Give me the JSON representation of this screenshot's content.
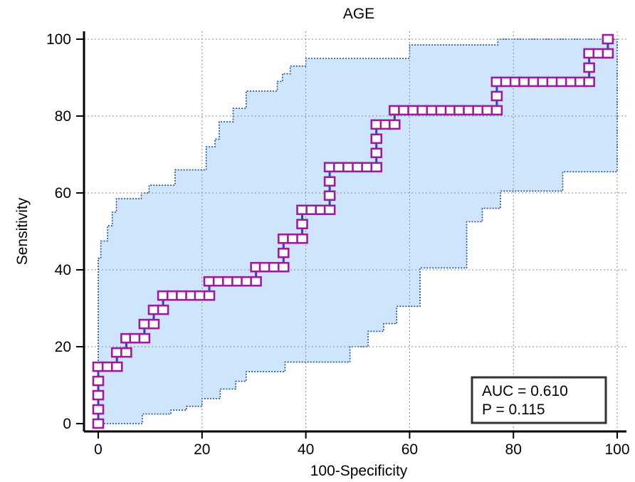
{
  "chart_data": {
    "type": "line",
    "title": "AGE",
    "xlabel": "100-Specificity",
    "ylabel": "Sensitivity",
    "xlim": [
      0,
      100
    ],
    "ylim": [
      0,
      100
    ],
    "xticks": [
      0,
      20,
      40,
      60,
      80,
      100
    ],
    "yticks": [
      0,
      20,
      40,
      60,
      80,
      100
    ],
    "grid": true,
    "annotation": [
      "AUC = 0.610",
      "P = 0.115"
    ],
    "annotation_position": "bottom-right",
    "colors": {
      "curve": "#3b3fb0",
      "markers": "#9c1d9c",
      "ci_fill": "#cfe5fb",
      "ci_border": "#1f4e9c",
      "grid": "#8a8a8a"
    },
    "series": [
      {
        "points": [
          [
            0,
            0
          ],
          [
            0,
            3.7
          ],
          [
            0,
            7.4
          ],
          [
            0,
            11.1
          ],
          [
            0,
            14.8
          ],
          [
            1.8,
            14.8
          ],
          [
            3.6,
            14.8
          ],
          [
            3.6,
            18.5
          ],
          [
            5.4,
            18.5
          ],
          [
            5.4,
            22.2
          ],
          [
            7.1,
            22.2
          ],
          [
            8.9,
            22.2
          ],
          [
            8.9,
            25.9
          ],
          [
            10.7,
            25.9
          ],
          [
            10.7,
            29.6
          ],
          [
            12.5,
            29.6
          ],
          [
            12.5,
            33.3
          ],
          [
            14.3,
            33.3
          ],
          [
            16.1,
            33.3
          ],
          [
            17.9,
            33.3
          ],
          [
            19.6,
            33.3
          ],
          [
            21.4,
            33.3
          ],
          [
            21.4,
            37
          ],
          [
            23.2,
            37
          ],
          [
            25,
            37
          ],
          [
            26.8,
            37
          ],
          [
            28.6,
            37
          ],
          [
            30.4,
            37
          ],
          [
            30.4,
            40.7
          ],
          [
            32.1,
            40.7
          ],
          [
            33.9,
            40.7
          ],
          [
            35.7,
            40.7
          ],
          [
            35.7,
            44.4
          ],
          [
            35.7,
            48.1
          ],
          [
            37.5,
            48.1
          ],
          [
            39.3,
            48.1
          ],
          [
            39.3,
            51.9
          ],
          [
            39.3,
            55.6
          ],
          [
            41.1,
            55.6
          ],
          [
            42.9,
            55.6
          ],
          [
            44.6,
            55.6
          ],
          [
            44.6,
            59.3
          ],
          [
            44.6,
            63
          ],
          [
            44.6,
            66.7
          ],
          [
            46.4,
            66.7
          ],
          [
            48.2,
            66.7
          ],
          [
            50,
            66.7
          ],
          [
            51.8,
            66.7
          ],
          [
            53.6,
            66.7
          ],
          [
            53.6,
            70.4
          ],
          [
            53.6,
            74.1
          ],
          [
            53.6,
            77.8
          ],
          [
            55.4,
            77.8
          ],
          [
            57.1,
            77.8
          ],
          [
            57.1,
            81.5
          ],
          [
            58.9,
            81.5
          ],
          [
            60.7,
            81.5
          ],
          [
            62.5,
            81.5
          ],
          [
            64.3,
            81.5
          ],
          [
            66.1,
            81.5
          ],
          [
            67.9,
            81.5
          ],
          [
            69.6,
            81.5
          ],
          [
            71.4,
            81.5
          ],
          [
            73.2,
            81.5
          ],
          [
            75,
            81.5
          ],
          [
            76.8,
            81.5
          ],
          [
            76.8,
            85.2
          ],
          [
            76.8,
            88.9
          ],
          [
            78.6,
            88.9
          ],
          [
            80.4,
            88.9
          ],
          [
            82.1,
            88.9
          ],
          [
            83.9,
            88.9
          ],
          [
            85.7,
            88.9
          ],
          [
            87.5,
            88.9
          ],
          [
            89.3,
            88.9
          ],
          [
            91.1,
            88.9
          ],
          [
            92.9,
            88.9
          ],
          [
            94.6,
            88.9
          ],
          [
            94.6,
            92.6
          ],
          [
            94.6,
            96.3
          ],
          [
            96.4,
            96.3
          ],
          [
            98.2,
            96.3
          ],
          [
            98.2,
            100
          ]
        ]
      }
    ],
    "ci_upper": [
      [
        0,
        0
      ],
      [
        0,
        43
      ],
      [
        0.5,
        43
      ],
      [
        0.5,
        47.5
      ],
      [
        1.8,
        47.5
      ],
      [
        1.8,
        51.5
      ],
      [
        2.7,
        51.5
      ],
      [
        2.7,
        55
      ],
      [
        3.5,
        55
      ],
      [
        3.5,
        58.5
      ],
      [
        8.3,
        58.5
      ],
      [
        8.3,
        60
      ],
      [
        9.8,
        60
      ],
      [
        9.8,
        62
      ],
      [
        14.8,
        62
      ],
      [
        14.8,
        66
      ],
      [
        20.8,
        66
      ],
      [
        20.8,
        72
      ],
      [
        22.5,
        72
      ],
      [
        22.5,
        74
      ],
      [
        23.3,
        74
      ],
      [
        23.3,
        78.5
      ],
      [
        26,
        78.5
      ],
      [
        26,
        82
      ],
      [
        28.5,
        82
      ],
      [
        28.5,
        86.5
      ],
      [
        34.5,
        86.5
      ],
      [
        34.5,
        89
      ],
      [
        35.5,
        89
      ],
      [
        35.5,
        91
      ],
      [
        37,
        91
      ],
      [
        37,
        93
      ],
      [
        40,
        93
      ],
      [
        40,
        95
      ],
      [
        46,
        95
      ],
      [
        60,
        95
      ],
      [
        60,
        98.5
      ],
      [
        77,
        98.5
      ],
      [
        77,
        100
      ],
      [
        100,
        100
      ]
    ],
    "ci_lower": [
      [
        0,
        0
      ],
      [
        8.5,
        0
      ],
      [
        8.5,
        2.5
      ],
      [
        14,
        2.5
      ],
      [
        14,
        3.5
      ],
      [
        17,
        3.5
      ],
      [
        17,
        4.5
      ],
      [
        20,
        4.5
      ],
      [
        20,
        6.5
      ],
      [
        23.5,
        6.5
      ],
      [
        23.5,
        9
      ],
      [
        26.5,
        9
      ],
      [
        26.5,
        11
      ],
      [
        28.5,
        11
      ],
      [
        28.5,
        13.5
      ],
      [
        36,
        13.5
      ],
      [
        36,
        16
      ],
      [
        48.5,
        16
      ],
      [
        48.5,
        20
      ],
      [
        52,
        20
      ],
      [
        52,
        24
      ],
      [
        55,
        24
      ],
      [
        55,
        26
      ],
      [
        57.5,
        26
      ],
      [
        57.5,
        30.5
      ],
      [
        62,
        30.5
      ],
      [
        62,
        40.5
      ],
      [
        71,
        40.5
      ],
      [
        71,
        52.5
      ],
      [
        74,
        52.5
      ],
      [
        74,
        56
      ],
      [
        77.5,
        56
      ],
      [
        77.5,
        60.5
      ],
      [
        89.5,
        60.5
      ],
      [
        89.5,
        65.5
      ],
      [
        100,
        65.5
      ],
      [
        100,
        100
      ]
    ]
  }
}
